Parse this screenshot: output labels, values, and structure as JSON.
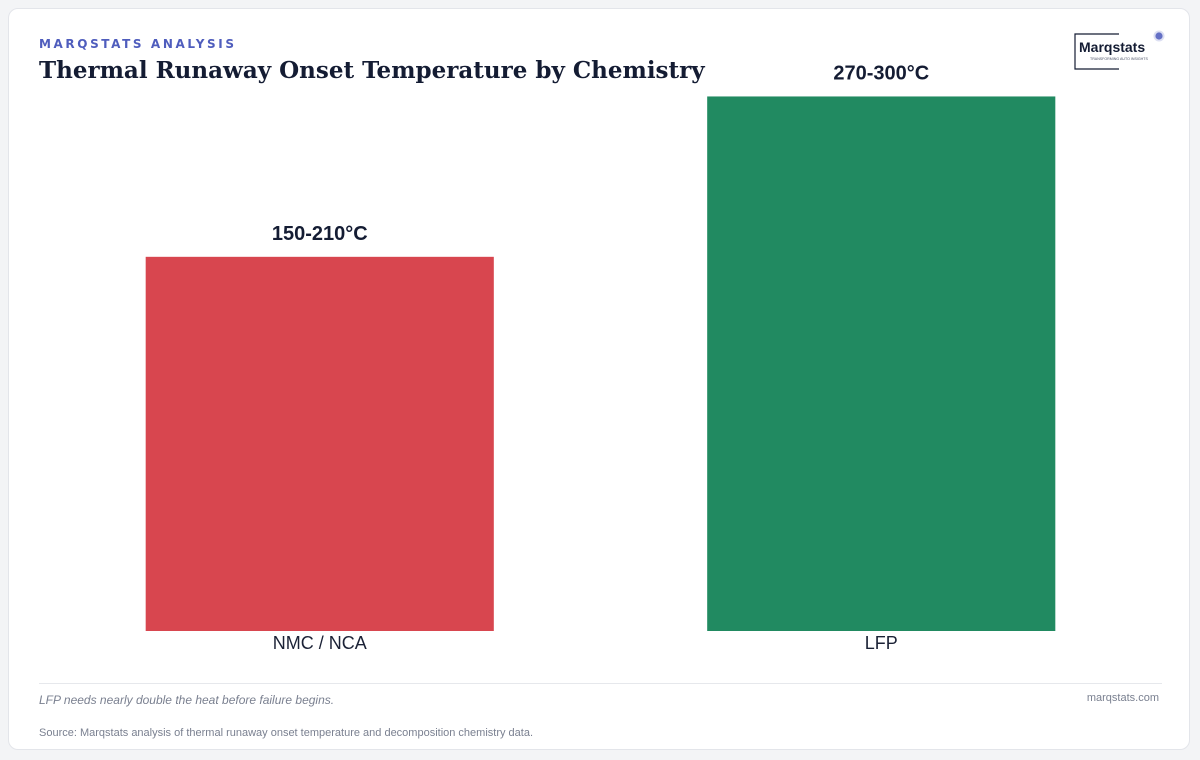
{
  "header": {
    "kicker": "MARQSTATS ANALYSIS",
    "title": "Thermal Runaway Onset Temperature by Chemistry"
  },
  "logo": {
    "wordmark": "Marqstats",
    "tagline": "TRANSFORMING AUTO INSIGHTS",
    "accent_color": "#4f5dbd"
  },
  "chart_data": {
    "type": "bar",
    "title": "Thermal Runaway Onset Temperature by Chemistry",
    "xlabel": "",
    "ylabel": "",
    "categories": [
      "NMC / NCA",
      "LFP"
    ],
    "ranges": [
      [
        150,
        210
      ],
      [
        270,
        300
      ]
    ],
    "values": [
      210,
      300
    ],
    "data_labels": [
      "150-210°C",
      "270-300°C"
    ],
    "colors": [
      "#d8464f",
      "#218a61"
    ],
    "ylim": [
      0,
      330
    ],
    "grid": false,
    "legend": "none"
  },
  "footer": {
    "note": "LFP needs nearly double the heat before failure begins.",
    "site": "marqstats.com",
    "source": "Source: Marqstats analysis of thermal runaway onset temperature and decomposition chemistry data."
  }
}
